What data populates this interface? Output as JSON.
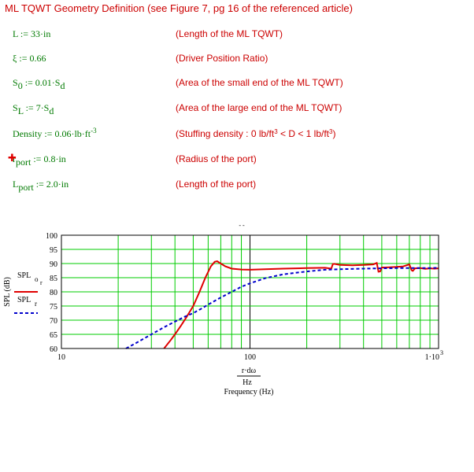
{
  "header": {
    "title": "ML TQWT Geometry Definition (see Figure 7, pg 16 of the referenced article)"
  },
  "definitions": [
    {
      "lhs": "L",
      "sub": "",
      "op": " := ",
      "rhs": "33·in",
      "rhs_sub": "",
      "rhs_sup": "",
      "desc": "(Length of the ML TQWT)"
    },
    {
      "lhs": "ξ",
      "sub": "",
      "op": " := ",
      "rhs": "0.66",
      "rhs_sub": "",
      "rhs_sup": "",
      "desc": "(Driver Position Ratio)"
    },
    {
      "lhs": "S",
      "sub": "0",
      "op": " := ",
      "rhs": "0.01·S",
      "rhs_sub": "d",
      "rhs_sup": "",
      "desc": "(Area of the small end of the ML TQWT)"
    },
    {
      "lhs": "S",
      "sub": "L",
      "op": " := ",
      "rhs": "7·S",
      "rhs_sub": "d",
      "rhs_sup": "",
      "desc": "(Area of the large end of the ML TQWT)"
    },
    {
      "lhs": "Density",
      "sub": "",
      "op": " := ",
      "rhs": "0.06·lb·ft",
      "rhs_sub": "",
      "rhs_sup": "-3",
      "desc": "(Stuffing density : 0 lb/ft"
    },
    {
      "lhs": "r",
      "sub": "port",
      "op": " := ",
      "rhs": "0.8·in",
      "rhs_sub": "",
      "rhs_sup": "",
      "desc": "(Radius of the port)"
    },
    {
      "lhs": "L",
      "sub": "port",
      "op": " := ",
      "rhs": "2.0·in",
      "rhs_sub": "",
      "rhs_sup": "",
      "desc": "(Length of the port)"
    }
  ],
  "density_desc": {
    "part1": "(Stuffing density : 0 lb/ft",
    "sup1": "3",
    "part2": " < D < 1 lb/ft",
    "sup2": "3",
    "part3": ")"
  },
  "chart_data": {
    "type": "line",
    "title": "",
    "xlabel_num": "r·dω",
    "xlabel_den": "Hz",
    "xlabel": "Frequency (Hz)",
    "ylabel": "SPL (dB)",
    "xscale": "log",
    "xlim": [
      10,
      1000
    ],
    "ylim": [
      60,
      100
    ],
    "grid": true,
    "x_ticks": [
      "10",
      "100",
      "1·10"
    ],
    "x_tick_last_sup": "3",
    "y_ticks": [
      "60",
      "65",
      "70",
      "75",
      "80",
      "85",
      "90",
      "95",
      "100"
    ],
    "legend_placement": "left",
    "series": [
      {
        "name": "SPL",
        "name_sub": "o",
        "name_subsub": "r",
        "color": "#e00000",
        "style": "solid",
        "x": [
          35,
          38,
          40,
          43,
          46,
          50,
          54,
          58,
          62,
          65,
          67,
          70,
          74,
          80,
          90,
          100,
          120,
          150,
          200,
          250,
          270,
          275,
          280,
          300,
          350,
          400,
          450,
          470,
          480,
          490,
          500,
          520,
          550,
          600,
          650,
          700,
          720,
          730,
          750,
          800,
          850,
          900,
          950,
          1000
        ],
        "y": [
          60,
          63,
          65,
          68,
          71,
          75,
          80,
          85,
          89,
          90.6,
          90.8,
          90,
          89,
          88.2,
          87.9,
          87.8,
          88,
          88.2,
          88.4,
          88.5,
          88.2,
          89.8,
          89.9,
          89.5,
          89.4,
          89.5,
          89.7,
          90.2,
          87.1,
          87.2,
          88.6,
          88.6,
          88.7,
          88.8,
          89,
          89.7,
          87.6,
          87.4,
          88.3,
          88.4,
          88.1,
          88.3,
          88.2,
          88.3
        ]
      },
      {
        "name": "SPL",
        "name_sub": "r",
        "name_subsub": "",
        "color": "#0000cc",
        "style": "dashed",
        "x": [
          22,
          25,
          30,
          35,
          40,
          45,
          50,
          55,
          60,
          65,
          70,
          80,
          90,
          100,
          120,
          150,
          200,
          250,
          300,
          400,
          500,
          600,
          700,
          800,
          900,
          1000
        ],
        "y": [
          60,
          62,
          65,
          67.5,
          69.5,
          71.2,
          72.5,
          74,
          75.5,
          76.8,
          78,
          80,
          81.8,
          83,
          84.8,
          86.2,
          87.2,
          87.8,
          88,
          88.2,
          88.3,
          88.4,
          88.4,
          88.4,
          88.4,
          88.5
        ]
      }
    ]
  }
}
